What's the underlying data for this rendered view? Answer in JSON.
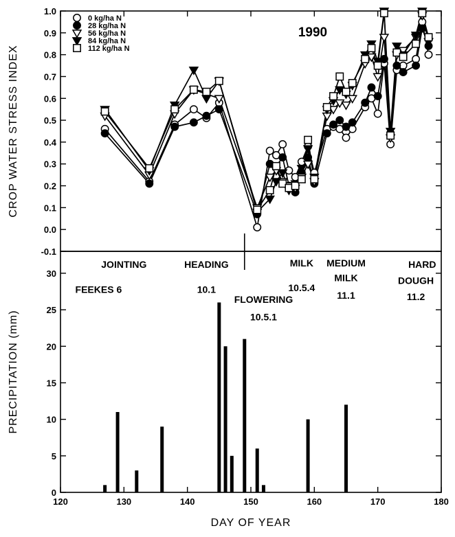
{
  "chart_data": [
    {
      "type": "line",
      "title": "1990",
      "xlabel": "",
      "ylabel": "CROP WATER STRESS INDEX",
      "xlim": [
        120,
        180
      ],
      "ylim": [
        -0.1,
        1.0
      ],
      "yticks": [
        "-0.1",
        "0.0",
        "0.1",
        "0.2",
        "0.3",
        "0.4",
        "0.5",
        "0.6",
        "0.7",
        "0.8",
        "0.9",
        "1.0"
      ],
      "grid": false,
      "legend_position": "top-left",
      "x": [
        127,
        134,
        138,
        141,
        143,
        145,
        151,
        153,
        154,
        155,
        156,
        157,
        158,
        159,
        160,
        162,
        163,
        164,
        165,
        166,
        168,
        169,
        170,
        171,
        172,
        173,
        174,
        176,
        177,
        178
      ],
      "series": [
        {
          "name": "0 kg/ha N",
          "marker": "open-circle",
          "values": [
            0.46,
            0.22,
            0.48,
            0.55,
            0.51,
            0.58,
            0.01,
            0.36,
            0.34,
            0.39,
            0.27,
            0.24,
            0.31,
            0.38,
            0.26,
            0.46,
            0.47,
            0.46,
            0.42,
            0.46,
            0.56,
            0.6,
            0.53,
            0.76,
            0.39,
            0.73,
            0.75,
            0.78,
            0.95,
            0.8
          ]
        },
        {
          "name": "28 kg/ha N",
          "marker": "filled-circle",
          "values": [
            0.44,
            0.21,
            0.47,
            0.49,
            0.52,
            0.55,
            0.07,
            0.3,
            0.29,
            0.33,
            0.2,
            0.17,
            0.26,
            0.33,
            0.21,
            0.44,
            0.48,
            0.5,
            0.47,
            0.49,
            0.58,
            0.65,
            0.61,
            0.78,
            0.44,
            0.75,
            0.72,
            0.75,
            0.92,
            0.84
          ]
        },
        {
          "name": "56 kg/ha N",
          "marker": "open-triangle-down",
          "values": [
            0.52,
            0.25,
            0.53,
            0.64,
            0.62,
            0.6,
            0.1,
            0.24,
            0.27,
            0.22,
            0.2,
            0.19,
            0.24,
            0.3,
            0.22,
            0.52,
            0.55,
            0.58,
            0.57,
            0.6,
            0.76,
            0.79,
            0.7,
            0.88,
            0.42,
            0.8,
            0.82,
            0.88,
            0.98,
            0.86
          ]
        },
        {
          "name": "84 kg/ha N",
          "marker": "filled-triangle-down",
          "values": [
            0.55,
            0.27,
            0.57,
            0.73,
            0.6,
            0.68,
            0.08,
            0.14,
            0.22,
            0.26,
            0.18,
            0.21,
            0.28,
            0.37,
            0.24,
            0.55,
            0.59,
            0.64,
            0.62,
            0.66,
            0.8,
            0.85,
            0.77,
            1.0,
            0.45,
            0.84,
            0.8,
            0.89,
            1.0,
            0.86
          ]
        },
        {
          "name": "112 kg/ha N",
          "marker": "open-square",
          "values": [
            0.54,
            0.28,
            0.55,
            0.64,
            0.63,
            0.68,
            0.09,
            0.18,
            0.29,
            0.21,
            0.19,
            0.2,
            0.23,
            0.41,
            0.23,
            0.56,
            0.61,
            0.7,
            0.63,
            0.67,
            0.78,
            0.83,
            0.75,
            0.99,
            0.43,
            0.81,
            0.79,
            0.85,
            0.99,
            0.88
          ]
        }
      ]
    },
    {
      "type": "bar",
      "xlabel": "DAY OF YEAR",
      "ylabel": "PRECIPITATION (mm)",
      "xlim": [
        120,
        180
      ],
      "ylim": [
        0,
        33
      ],
      "xticks": [
        "120",
        "130",
        "140",
        "150",
        "160",
        "170",
        "180"
      ],
      "yticks": [
        "0",
        "5",
        "10",
        "15",
        "20",
        "25",
        "30"
      ],
      "grid": false,
      "x": [
        127,
        129,
        132,
        136,
        145,
        146,
        147,
        149,
        151,
        152,
        159,
        165
      ],
      "values": [
        1,
        11,
        3,
        9,
        26,
        20,
        5,
        21,
        6,
        1,
        10,
        12
      ],
      "stage_marker_day": 149,
      "stages": [
        {
          "name": "JOINTING",
          "code": "",
          "name_day": 130,
          "name_y": 31.2
        },
        {
          "name": "FEEKES 6",
          "code": "",
          "name_day": 126,
          "name_y": 27.8
        },
        {
          "name": "HEADING",
          "code": "10.1",
          "name_day": 143,
          "name_y": 31.2,
          "code_day": 143,
          "code_y": 27.8
        },
        {
          "name": "FLOWERING",
          "code": "10.5.1",
          "name_day": 152,
          "name_y": 26.4,
          "code_day": 152,
          "code_y": 24.0
        },
        {
          "name": "MILK",
          "code": "10.5.4",
          "name_day": 158,
          "name_y": 31.4,
          "code_day": 158,
          "code_y": 28.0
        },
        {
          "name": "MEDIUM",
          "code": "",
          "name_day": 165,
          "name_y": 31.4
        },
        {
          "name": "MILK",
          "code": "11.1",
          "name_day": 165,
          "name_y": 29.4,
          "code_day": 165,
          "code_y": 27.0
        },
        {
          "name": "HARD",
          "code": "",
          "name_day": 177,
          "name_y": 31.2
        },
        {
          "name": "DOUGH",
          "code": "11.2",
          "name_day": 176,
          "name_y": 29.0,
          "code_day": 176,
          "code_y": 26.8
        }
      ]
    }
  ]
}
